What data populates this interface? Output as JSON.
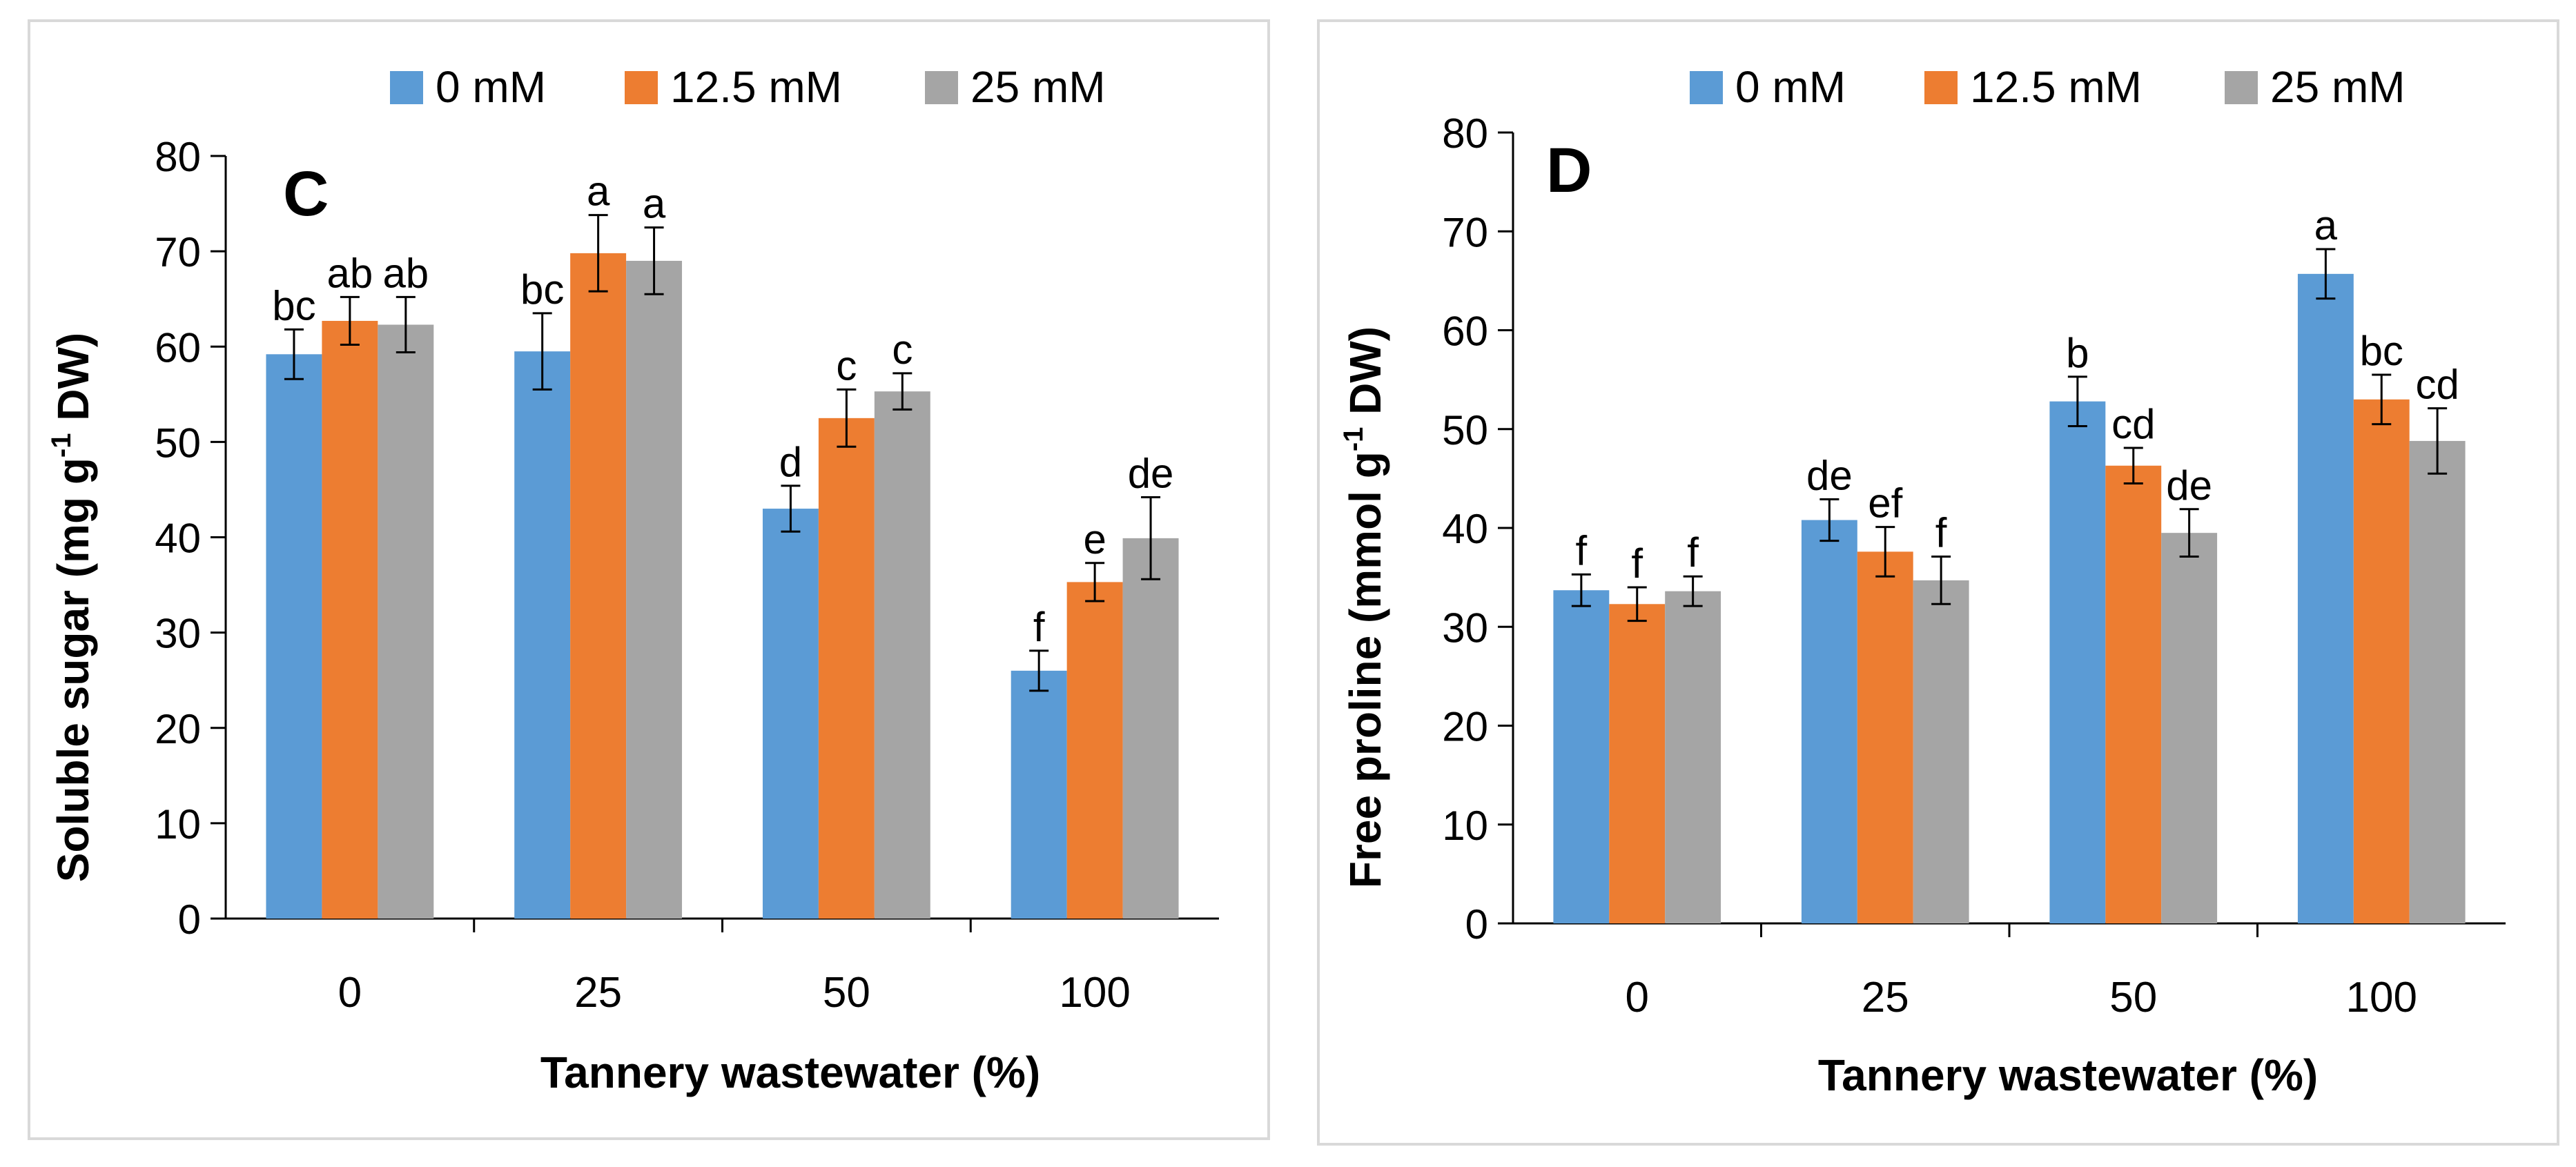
{
  "chart_data": [
    {
      "type": "bar",
      "panel_label": "C",
      "xlabel": "Tannery wastewater (%)",
      "ylabel_main": "Soluble sugar (mg g",
      "ylabel_sup": "-1",
      "ylabel_tail": " DW)",
      "ylim": [
        0,
        80
      ],
      "yticks": [
        0,
        10,
        20,
        30,
        40,
        50,
        60,
        70,
        80
      ],
      "categories": [
        "0",
        "25",
        "50",
        "100"
      ],
      "legend_position": "top-center",
      "series": [
        {
          "name": "0 mM",
          "color": "#5B9BD5",
          "values": [
            59.2,
            59.5,
            43.0,
            26.0
          ],
          "errors": [
            2.6,
            4.0,
            2.4,
            2.1
          ],
          "letters": [
            "bc",
            "bc",
            "d",
            "f"
          ]
        },
        {
          "name": "12.5 mM",
          "color": "#ED7D31",
          "values": [
            62.7,
            69.8,
            52.5,
            35.3
          ],
          "errors": [
            2.5,
            4.0,
            3.0,
            2.0
          ],
          "letters": [
            "ab",
            "a",
            "c",
            "e"
          ]
        },
        {
          "name": "25 mM",
          "color": "#A5A5A5",
          "values": [
            62.3,
            69.0,
            55.3,
            39.9
          ],
          "errors": [
            2.9,
            3.5,
            1.9,
            4.3
          ],
          "letters": [
            "ab",
            "a",
            "c",
            "de"
          ]
        }
      ]
    },
    {
      "type": "bar",
      "panel_label": "D",
      "xlabel": "Tannery wastewater (%)",
      "ylabel_main": "Free proline (mmol g",
      "ylabel_sup": "-1",
      "ylabel_tail": " DW)",
      "ylim": [
        0,
        80
      ],
      "yticks": [
        0,
        10,
        20,
        30,
        40,
        50,
        60,
        70,
        80
      ],
      "categories": [
        "0",
        "25",
        "50",
        "100"
      ],
      "legend_position": "top-center",
      "series": [
        {
          "name": "0 mM",
          "color": "#5B9BD5",
          "values": [
            33.7,
            40.8,
            52.8,
            65.7
          ],
          "errors": [
            1.6,
            2.1,
            2.5,
            2.5
          ],
          "letters": [
            "f",
            "de",
            "b",
            "a"
          ]
        },
        {
          "name": "12.5 mM",
          "color": "#ED7D31",
          "values": [
            32.3,
            37.6,
            46.3,
            53.0
          ],
          "errors": [
            1.7,
            2.5,
            1.8,
            2.5
          ],
          "letters": [
            "f",
            "ef",
            "cd",
            "bc"
          ]
        },
        {
          "name": "25 mM",
          "color": "#A5A5A5",
          "values": [
            33.6,
            34.7,
            39.5,
            48.8
          ],
          "errors": [
            1.5,
            2.4,
            2.4,
            3.3
          ],
          "letters": [
            "f",
            "f",
            "de",
            "cd"
          ]
        }
      ]
    }
  ]
}
